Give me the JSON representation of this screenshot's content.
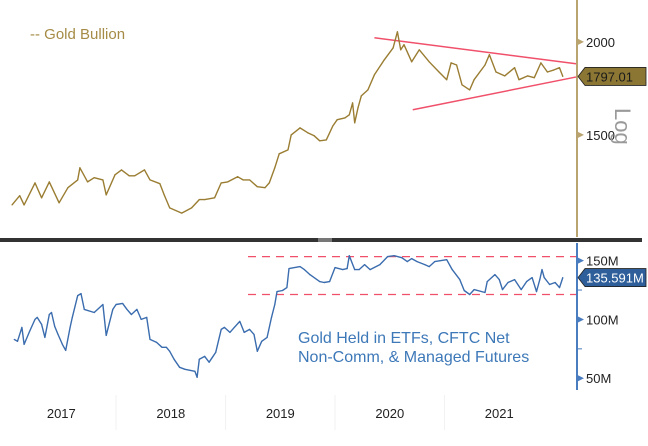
{
  "chart_data": [
    {
      "type": "line",
      "panel": "top",
      "legend": "-- Gold Bullion",
      "legend_placement": "top-left",
      "axis_side": "right",
      "scale": "log",
      "scale_label": "Log",
      "ylim": [
        1094,
        2276
      ],
      "xlim": [
        2016.94,
        2022.21
      ],
      "yticks": [
        {
          "value": 2000,
          "label": "2000"
        },
        {
          "value": 1500,
          "label": "1500"
        }
      ],
      "last_value": 1797.01,
      "last_value_label": "1797.01",
      "colors": {
        "series": "#9a7d32",
        "axis": "#b9a470",
        "tag": "#8c7634",
        "trend": "#f0506a"
      },
      "series": [
        {
          "x": [
            2017.05,
            2017.12,
            2017.16,
            2017.26,
            2017.32,
            2017.39,
            2017.48,
            2017.56,
            2017.65,
            2017.67,
            2017.74,
            2017.8,
            2017.88,
            2017.91,
            2017.99,
            2018.05,
            2018.12,
            2018.17,
            2018.26,
            2018.31,
            2018.4,
            2018.44,
            2018.49,
            2018.6,
            2018.69,
            2018.76,
            2018.81,
            2018.9,
            2018.96,
            2019.02,
            2019.11,
            2019.16,
            2019.22,
            2019.29,
            2019.36,
            2019.4,
            2019.45,
            2019.49,
            2019.57,
            2019.6,
            2019.68,
            2019.75,
            2019.81,
            2019.86,
            2019.92,
            2019.98,
            2020.02,
            2020.09,
            2020.13,
            2020.16,
            2020.18,
            2020.21,
            2020.24,
            2020.3,
            2020.36,
            2020.45,
            2020.53,
            2020.57,
            2020.6,
            2020.63,
            2020.7,
            2020.77,
            2020.86,
            2020.95,
            2021.02,
            2021.06,
            2021.11,
            2021.16,
            2021.23,
            2021.27,
            2021.37,
            2021.41,
            2021.47,
            2021.55,
            2021.64,
            2021.68,
            2021.76,
            2021.82,
            2021.88,
            2021.94,
            2022.0,
            2022.05,
            2022.08
          ],
          "values": [
            1208,
            1243,
            1208,
            1293,
            1235,
            1297,
            1216,
            1274,
            1305,
            1355,
            1297,
            1314,
            1305,
            1246,
            1326,
            1346,
            1322,
            1322,
            1346,
            1305,
            1290,
            1246,
            1197,
            1178,
            1197,
            1228,
            1228,
            1235,
            1293,
            1297,
            1318,
            1305,
            1305,
            1278,
            1274,
            1293,
            1355,
            1415,
            1432,
            1500,
            1533,
            1510,
            1496,
            1473,
            1477,
            1542,
            1572,
            1581,
            1596,
            1656,
            1557,
            1631,
            1692,
            1724,
            1806,
            1892,
            1963,
            2063,
            1951,
            1982,
            1880,
            1951,
            1880,
            1822,
            1779,
            1874,
            1862,
            1751,
            1724,
            1779,
            1862,
            1922,
            1822,
            1800,
            1846,
            1779,
            1800,
            1790,
            1874,
            1822,
            1834,
            1846,
            1797
          ]
        }
      ],
      "trendlines": [
        {
          "x": [
            2020.36,
            2022.21
          ],
          "values": [
            2025,
            1868
          ]
        },
        {
          "x": [
            2020.71,
            2022.21
          ],
          "values": [
            1621,
            1795
          ]
        }
      ]
    },
    {
      "type": "line",
      "panel": "bottom",
      "axis_side": "right",
      "ylim": [
        40,
        165
      ],
      "xlim": [
        2016.94,
        2022.21
      ],
      "yticks": [
        {
          "value": 150,
          "label": "150M"
        },
        {
          "value": 100,
          "label": "100M"
        },
        {
          "value": 50,
          "label": "50M"
        }
      ],
      "minor_ticks": [
        125,
        75
      ],
      "last_value": 135.591,
      "last_value_label": "135.591M",
      "annotation": [
        "Gold Held in ETFs, CFTC Net",
        "Non-Comm, & Managed Futures"
      ],
      "colors": {
        "series": "#3a6cae",
        "axis": "#4a7cc0",
        "tag": "#2f5f9a",
        "bands": "#f0506a",
        "annotation": "#3d78b8"
      },
      "bands": [
        153.4,
        121.2
      ],
      "series": [
        {
          "x": [
            2017.07,
            2017.1,
            2017.14,
            2017.16,
            2017.21,
            2017.26,
            2017.28,
            2017.32,
            2017.35,
            2017.39,
            2017.41,
            2017.44,
            2017.47,
            2017.51,
            2017.54,
            2017.58,
            2017.6,
            2017.65,
            2017.68,
            2017.71,
            2017.8,
            2017.88,
            2017.91,
            2017.97,
            2018.0,
            2018.06,
            2018.1,
            2018.14,
            2018.19,
            2018.23,
            2018.28,
            2018.31,
            2018.37,
            2018.42,
            2018.46,
            2018.49,
            2018.53,
            2018.58,
            2018.63,
            2018.72,
            2018.74,
            2018.76,
            2018.81,
            2018.85,
            2018.88,
            2018.91,
            2018.96,
            2018.99,
            2019.04,
            2019.08,
            2019.13,
            2019.17,
            2019.22,
            2019.26,
            2019.29,
            2019.33,
            2019.38,
            2019.42,
            2019.45,
            2019.47,
            2019.52,
            2019.56,
            2019.58,
            2019.68,
            2019.72,
            2019.77,
            2019.86,
            2019.9,
            2019.95,
            2020.0,
            2020.07,
            2020.11,
            2020.13,
            2020.18,
            2020.22,
            2020.27,
            2020.32,
            2020.41,
            2020.48,
            2020.54,
            2020.61,
            2020.66,
            2020.7,
            2020.75,
            2020.82,
            2020.86,
            2020.91,
            2021.02,
            2021.07,
            2021.14,
            2021.18,
            2021.23,
            2021.27,
            2021.37,
            2021.39,
            2021.46,
            2021.5,
            2021.53,
            2021.58,
            2021.64,
            2021.7,
            2021.75,
            2021.8,
            2021.84,
            2021.87,
            2021.89,
            2021.91,
            2021.96,
            2022.01,
            2022.05,
            2022.08
          ],
          "values": [
            83.0,
            81.4,
            93.2,
            78.8,
            89.8,
            100,
            101.7,
            95.8,
            84.7,
            104.2,
            105.9,
            94.1,
            87.3,
            78.8,
            73.7,
            93.2,
            101.7,
            120.3,
            122.0,
            108.5,
            105.9,
            112.7,
            86.4,
            108.5,
            112.7,
            113.6,
            108.5,
            104.2,
            108.5,
            100,
            101.7,
            83.0,
            80.5,
            76.3,
            76.3,
            72.9,
            66.1,
            59.3,
            57.6,
            55.9,
            50.8,
            66.1,
            68.6,
            63.6,
            67.8,
            72.0,
            91.5,
            93.2,
            89.0,
            93.2,
            98.3,
            89.0,
            91.5,
            87.3,
            72.9,
            81.4,
            84.7,
            101.7,
            112.7,
            123.7,
            124.6,
            127.1,
            143.2,
            144.9,
            142.4,
            138.1,
            132.2,
            131.4,
            132.2,
            144.1,
            142.4,
            143.2,
            154.2,
            142.4,
            142.4,
            146.6,
            142.4,
            146.6,
            153.4,
            154.2,
            152.5,
            149.2,
            151.7,
            149.2,
            146.6,
            144.9,
            149.2,
            150.8,
            142.4,
            133.9,
            124.6,
            121.2,
            125.4,
            122.9,
            132.2,
            138.1,
            133.9,
            125.4,
            131.4,
            133.9,
            125.4,
            132.2,
            135.6,
            123.7,
            133.9,
            142.4,
            135.6,
            129.7,
            131.4,
            127.1,
            135.6
          ]
        }
      ]
    }
  ],
  "x_axis": {
    "ticks": [
      {
        "value": 2017.5,
        "label": "2017"
      },
      {
        "value": 2018.5,
        "label": "2018"
      },
      {
        "value": 2019.5,
        "label": "2019"
      },
      {
        "value": 2020.5,
        "label": "2020"
      },
      {
        "value": 2021.5,
        "label": "2021"
      }
    ],
    "boundaries": [
      2018,
      2019,
      2020,
      2021
    ]
  },
  "separator_color": "#333333"
}
